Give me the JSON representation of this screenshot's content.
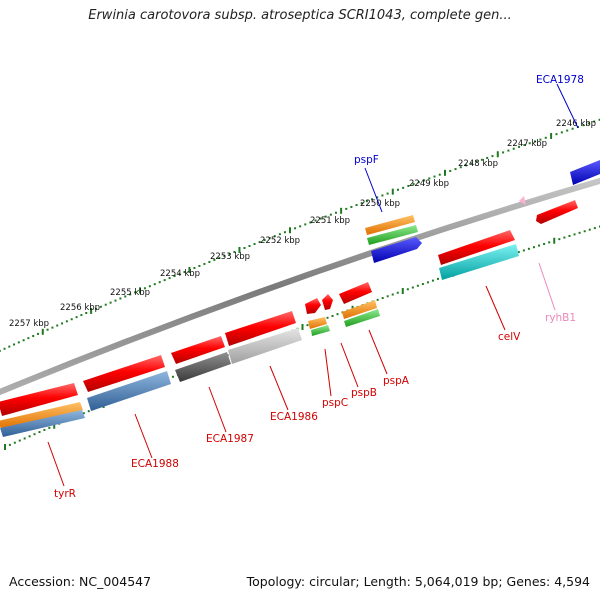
{
  "title": "Erwinia carotovora subsp. atroseptica SCRI1043, complete gen...",
  "accession": "Accession: NC_004547",
  "summary": "Topology: circular; Length: 5,064,019 bp; Genes: 4,594",
  "colors": {
    "gene_forward": "#ff0000",
    "orange_band": "#ff8c00",
    "green_band": "#33cc33",
    "blue_feature": "#0000ee",
    "steel_blue": "#4a7db5",
    "cyan_feature": "#00c8c8",
    "dark_gray": "#555555",
    "light_gray": "#bdbdbd",
    "tick_green": "#1f7a1f",
    "label_red": "#d00000",
    "label_blue": "#0000cc",
    "label_pink": "#ee88bb",
    "backbone": "#777777"
  },
  "kbp_labels": [
    "2246 kbp",
    "2247 kbp",
    "2248 kbp",
    "2249 kbp",
    "2250 kbp",
    "2251 kbp",
    "2252 kbp",
    "2253 kbp",
    "2254 kbp",
    "2255 kbp",
    "2256 kbp",
    "2257 kbp"
  ],
  "gene_labels": {
    "eca1978": "ECA1978",
    "pspf": "pspF",
    "celv": "celV",
    "ryhb1": "ryhB1",
    "pspa": "pspA",
    "pspb": "pspB",
    "pspc": "pspC",
    "eca1986": "ECA1986",
    "eca1987": "ECA1987",
    "eca1988": "ECA1988",
    "tyrr": "tyrR"
  }
}
